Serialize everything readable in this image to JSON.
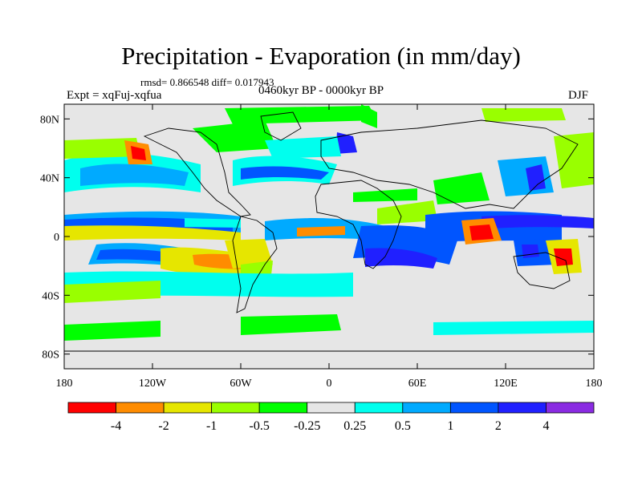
{
  "title": "Precipitation - Evaporation (in mm/day)",
  "stats": "rmsd= 0.866548 diff= 0.017943",
  "experiment": "Expt = xqFuj-xqfua",
  "period": "0460kyr BP - 0000kyr BP",
  "season": "DJF",
  "map": {
    "projection": "cylindrical equidistant",
    "lon_range": [
      -180,
      180
    ],
    "lat_range": [
      -90,
      90
    ],
    "lon_ticks": [
      {
        "value": -180,
        "label": "180"
      },
      {
        "value": -120,
        "label": "120W"
      },
      {
        "value": -60,
        "label": "60W"
      },
      {
        "value": 0,
        "label": "0"
      },
      {
        "value": 60,
        "label": "60E"
      },
      {
        "value": 120,
        "label": "120E"
      },
      {
        "value": 180,
        "label": "180"
      }
    ],
    "lat_ticks": [
      {
        "value": 80,
        "label": "80N"
      },
      {
        "value": 40,
        "label": "40N"
      },
      {
        "value": 0,
        "label": "0"
      },
      {
        "value": -40,
        "label": "40S"
      },
      {
        "value": -80,
        "label": "80S"
      }
    ],
    "background_color": "#e6e6e6"
  },
  "colorbar": {
    "labels": [
      "-4",
      "-2",
      "-1",
      "-0.5",
      "-0.25",
      "0.25",
      "0.5",
      "1",
      "2",
      "4"
    ],
    "colors": [
      "#ff0000",
      "#ff8c00",
      "#e6e600",
      "#99ff00",
      "#00ff00",
      "#e6e6e6",
      "#00ffee",
      "#00aaff",
      "#0055ff",
      "#2020ff",
      "#8a2be2"
    ]
  }
}
